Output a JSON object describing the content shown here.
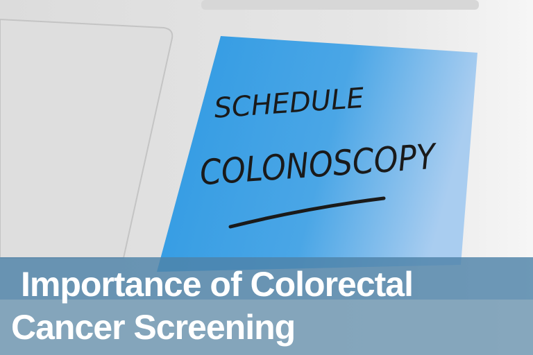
{
  "photo": {
    "note_text": [
      "SCHEDULE",
      "COLONOSCOPY"
    ],
    "note_color": "#3a9fe3",
    "surface_color": "#e4e4e4"
  },
  "banner": {
    "line1": "Importance of Colorectal",
    "line2": "Cancer Screening",
    "band_colors": [
      "#5a8db0",
      "#87a6ba"
    ]
  }
}
